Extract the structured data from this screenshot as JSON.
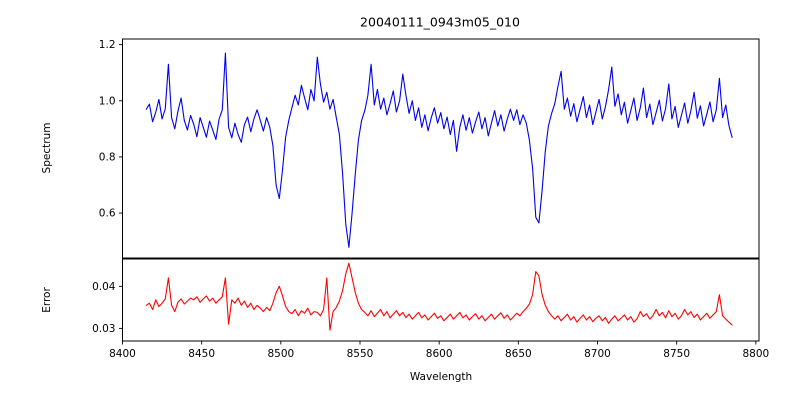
{
  "figure": {
    "background": "#ffffff",
    "text_color": "#000000",
    "spine_color": "#000000"
  },
  "chart_data": [
    {
      "type": "line",
      "title": "20040111_0943m05_010",
      "xlabel": "",
      "ylabel": "Spectrum",
      "xlim": [
        8400,
        8802
      ],
      "ylim": [
        0.44,
        1.22
      ],
      "yticks": [
        0.6,
        0.8,
        1.0,
        1.2
      ],
      "ytick_labels": [
        "0.6",
        "0.8",
        "1.0",
        "1.2"
      ],
      "xticks": [],
      "xtick_labels": [],
      "grid": false,
      "legend": "none",
      "series": [
        {
          "name": "spectrum",
          "color": "#0000ee",
          "x_start": 8415,
          "x_step": 2,
          "values": [
            0.97,
            0.988,
            0.925,
            0.96,
            1.005,
            0.935,
            0.972,
            1.13,
            0.94,
            0.9,
            0.962,
            1.01,
            0.93,
            0.896,
            0.948,
            0.915,
            0.872,
            0.94,
            0.905,
            0.87,
            0.928,
            0.895,
            0.862,
            0.935,
            0.968,
            1.17,
            0.905,
            0.868,
            0.92,
            0.88,
            0.852,
            0.915,
            0.942,
            0.89,
            0.935,
            0.968,
            0.93,
            0.892,
            0.94,
            0.905,
            0.84,
            0.7,
            0.652,
            0.75,
            0.87,
            0.93,
            0.975,
            1.02,
            0.985,
            1.055,
            1.01,
            0.968,
            1.04,
            1.0,
            1.155,
            1.06,
            0.995,
            1.03,
            0.97,
            1.005,
            0.94,
            0.88,
            0.74,
            0.56,
            0.478,
            0.6,
            0.74,
            0.86,
            0.93,
            0.965,
            1.02,
            1.13,
            0.985,
            1.04,
            0.97,
            1.01,
            0.95,
            0.99,
            1.035,
            0.96,
            1.0,
            1.095,
            1.02,
            0.955,
            1.0,
            0.93,
            0.975,
            0.905,
            0.95,
            0.893,
            0.94,
            0.975,
            0.92,
            0.958,
            0.9,
            0.942,
            0.88,
            0.93,
            0.82,
            0.905,
            0.95,
            0.895,
            0.94,
            0.885,
            0.925,
            0.96,
            0.9,
            0.94,
            0.875,
            0.92,
            0.965,
            0.91,
            0.95,
            0.892,
            0.935,
            0.97,
            0.93,
            0.968,
            0.915,
            0.95,
            0.92,
            0.86,
            0.76,
            0.585,
            0.565,
            0.68,
            0.82,
            0.91,
            0.955,
            0.99,
            1.05,
            1.105,
            0.97,
            1.01,
            0.945,
            0.99,
            0.925,
            0.97,
            1.015,
            0.94,
            0.985,
            0.915,
            0.96,
            1.005,
            0.935,
            0.978,
            1.04,
            1.12,
            0.98,
            1.025,
            0.95,
            0.995,
            0.92,
            0.965,
            1.01,
            0.93,
            0.975,
            1.045,
            0.94,
            0.988,
            0.915,
            0.958,
            1.002,
            0.928,
            0.972,
            1.06,
            0.935,
            0.98,
            0.905,
            0.948,
            0.992,
            0.92,
            0.965,
            1.03,
            0.938,
            0.982,
            0.91,
            0.952,
            0.996,
            0.925,
            0.968,
            1.08,
            0.94,
            0.985,
            0.912,
            0.87
          ]
        }
      ]
    },
    {
      "type": "line",
      "title": "",
      "xlabel": "Wavelength",
      "ylabel": "Error",
      "xlim": [
        8400,
        8802
      ],
      "ylim": [
        0.027,
        0.0465
      ],
      "yticks": [
        0.03,
        0.04
      ],
      "ytick_labels": [
        "0.03",
        "0.04"
      ],
      "xticks": [
        8400,
        8450,
        8500,
        8550,
        8600,
        8650,
        8700,
        8750,
        8800
      ],
      "xtick_labels": [
        "8400",
        "8450",
        "8500",
        "8550",
        "8600",
        "8650",
        "8700",
        "8750",
        "8800"
      ],
      "grid": false,
      "legend": "none",
      "series": [
        {
          "name": "error",
          "color": "#ff0000",
          "x_start": 8415,
          "x_step": 2,
          "values": [
            0.0355,
            0.036,
            0.0345,
            0.0368,
            0.0352,
            0.036,
            0.037,
            0.042,
            0.0355,
            0.034,
            0.0362,
            0.037,
            0.0358,
            0.0365,
            0.0372,
            0.0368,
            0.0375,
            0.0362,
            0.037,
            0.0377,
            0.0365,
            0.0372,
            0.036,
            0.0368,
            0.0375,
            0.042,
            0.031,
            0.0368,
            0.036,
            0.0372,
            0.0355,
            0.0365,
            0.035,
            0.036,
            0.0345,
            0.0355,
            0.0348,
            0.034,
            0.035,
            0.0342,
            0.036,
            0.0385,
            0.04,
            0.0378,
            0.0352,
            0.034,
            0.0335,
            0.0345,
            0.033,
            0.0342,
            0.0336,
            0.0348,
            0.0332,
            0.034,
            0.0338,
            0.033,
            0.0345,
            0.042,
            0.0296,
            0.034,
            0.035,
            0.0365,
            0.039,
            0.043,
            0.0455,
            0.042,
            0.0385,
            0.036,
            0.0345,
            0.0338,
            0.033,
            0.0342,
            0.0328,
            0.0336,
            0.0345,
            0.033,
            0.034,
            0.0325,
            0.0334,
            0.0342,
            0.033,
            0.0338,
            0.0326,
            0.0334,
            0.0322,
            0.033,
            0.0338,
            0.0325,
            0.0332,
            0.032,
            0.0328,
            0.0336,
            0.0324,
            0.033,
            0.0318,
            0.0326,
            0.0334,
            0.0322,
            0.033,
            0.0338,
            0.0325,
            0.0332,
            0.032,
            0.0328,
            0.0335,
            0.0322,
            0.033,
            0.0318,
            0.0326,
            0.0334,
            0.0322,
            0.033,
            0.0337,
            0.0324,
            0.0332,
            0.032,
            0.0328,
            0.0336,
            0.033,
            0.034,
            0.0348,
            0.0358,
            0.038,
            0.0435,
            0.0425,
            0.038,
            0.0355,
            0.034,
            0.033,
            0.0322,
            0.033,
            0.0318,
            0.0326,
            0.0334,
            0.032,
            0.0328,
            0.0315,
            0.0324,
            0.0332,
            0.032,
            0.0328,
            0.0316,
            0.0324,
            0.033,
            0.0318,
            0.0326,
            0.0312,
            0.0322,
            0.033,
            0.0318,
            0.0325,
            0.0332,
            0.032,
            0.0328,
            0.0315,
            0.0323,
            0.034,
            0.0328,
            0.0335,
            0.0322,
            0.033,
            0.0345,
            0.033,
            0.0338,
            0.0325,
            0.0342,
            0.0328,
            0.0336,
            0.0322,
            0.033,
            0.0345,
            0.0332,
            0.034,
            0.0326,
            0.0334,
            0.032,
            0.0328,
            0.0336,
            0.0324,
            0.0332,
            0.034,
            0.038,
            0.033,
            0.0322,
            0.0315,
            0.0308
          ]
        }
      ]
    }
  ]
}
